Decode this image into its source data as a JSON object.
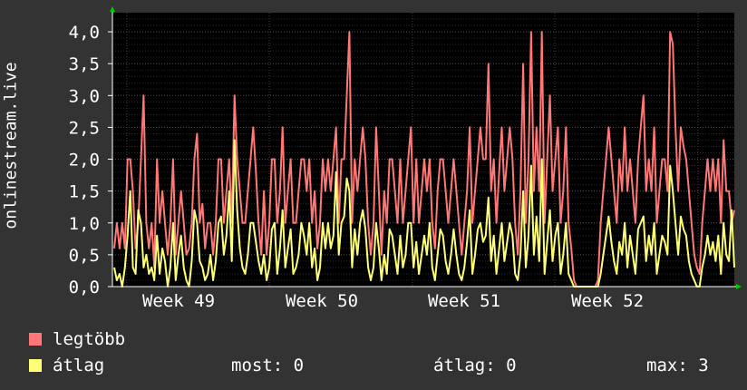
{
  "chart_data": {
    "type": "line",
    "title": "",
    "ylabel": "onlinestream.live",
    "xlabel": "",
    "x_ticks": [
      "Week 49",
      "Week 50",
      "Week 51",
      "Week 52"
    ],
    "y_ticks": [
      "0,0",
      "0,5",
      "1,0",
      "1,5",
      "2,0",
      "2,5",
      "3,0",
      "3,5",
      "4,0"
    ],
    "ylim": [
      0,
      4.3
    ],
    "grid": true,
    "legend_position": "bottom-left",
    "series": [
      {
        "name": "legtöbb",
        "color": "#ff7777",
        "values": [
          0.6,
          1,
          0.6,
          1,
          0.6,
          2,
          2,
          1.5,
          0.6,
          1,
          2,
          3,
          1,
          0.6,
          1,
          0.3,
          2,
          1,
          1.5,
          1,
          0.5,
          1,
          2,
          0.5,
          1,
          1.5,
          1,
          0.5,
          0.6,
          1,
          2,
          2.4,
          1,
          1.3,
          0.6,
          1,
          1,
          0.5,
          1,
          2,
          2,
          1,
          1.5,
          2,
          1,
          3,
          2,
          1.5,
          1,
          1,
          1.5,
          2,
          2.5,
          1.8,
          1,
          0.5,
          1.5,
          0.5,
          1,
          2,
          2,
          1,
          1.5,
          2.5,
          1,
          1.5,
          2,
          1,
          1,
          1.5,
          2,
          2,
          1.5,
          2,
          1,
          1.5,
          0.6,
          1,
          2,
          1.5,
          2,
          1.5,
          2,
          2.5,
          1,
          2,
          2,
          3,
          4,
          1,
          2,
          1.5,
          2,
          2.5,
          2,
          1,
          0.5,
          1,
          2.5,
          1.5,
          0.5,
          1.5,
          1,
          2,
          2,
          1.5,
          1,
          2,
          1,
          1.5,
          2,
          2.5,
          1,
          2,
          1,
          1.5,
          2,
          1.5,
          2,
          1,
          0.6,
          1.5,
          2,
          2,
          1.5,
          1,
          1.5,
          2,
          1.5,
          1,
          0.5,
          1,
          1.5,
          2.5,
          1,
          1.5,
          2,
          2.5,
          2,
          2,
          3.5,
          1.5,
          2,
          1,
          1.8,
          2.5,
          1.5,
          2,
          2.5,
          2,
          1,
          0.5,
          1.5,
          3.5,
          1,
          2,
          4,
          1.5,
          2.5,
          1.5,
          4,
          1,
          2,
          3,
          1.5,
          2,
          2.5,
          1,
          1.5,
          2.5,
          1,
          0.6,
          0.1,
          0,
          0,
          0,
          0,
          0,
          0,
          0,
          0,
          0.1,
          1,
          1.5,
          2,
          2.5,
          2,
          1.5,
          1,
          2,
          1.5,
          2.5,
          1.5,
          2,
          1.5,
          1,
          2,
          2.5,
          3,
          1.5,
          2,
          1.5,
          2.5,
          1,
          1.5,
          2,
          2,
          1.5,
          4,
          3.8,
          2.5,
          1.5,
          2.5,
          2.2,
          2,
          1.5,
          1,
          0.5,
          0.3,
          0.2,
          1,
          1.5,
          2,
          1.5,
          2,
          1.5,
          2,
          1,
          2.3,
          1.5,
          1.5,
          1,
          1.2
        ]
      },
      {
        "name": "átlag",
        "color": "#ffff77",
        "values": [
          0.3,
          0.1,
          0.2,
          0,
          0.3,
          0.8,
          1.5,
          0.3,
          0.2,
          1.2,
          1,
          0.3,
          0.5,
          0.2,
          0.3,
          0.1,
          0.8,
          0.2,
          0.6,
          0.4,
          0,
          0.3,
          1,
          0.1,
          0.5,
          0.8,
          0.3,
          0.1,
          0,
          0.4,
          1.2,
          1,
          0.4,
          0.3,
          0.1,
          0.2,
          0.5,
          0.1,
          0.4,
          1,
          1.1,
          0.5,
          0.8,
          1.5,
          0.4,
          2.3,
          1.2,
          0.6,
          0.3,
          0.2,
          0.5,
          1,
          1,
          0.7,
          0.4,
          0.2,
          0.5,
          0.1,
          0.3,
          0.9,
          1,
          0.2,
          0.6,
          1.2,
          0.3,
          0.6,
          0.9,
          0.2,
          0.3,
          0.5,
          1,
          0.8,
          0.5,
          1,
          0.3,
          0.6,
          0.1,
          0.3,
          1,
          0.6,
          1,
          0.6,
          0.8,
          1.8,
          0.5,
          1,
          1.1,
          1.7,
          1.5,
          0.3,
          0.9,
          0.5,
          1,
          1.2,
          0.9,
          0.3,
          0.1,
          0.3,
          1,
          0.6,
          0.1,
          0.5,
          0.2,
          0.9,
          0.8,
          0.5,
          0.2,
          0.8,
          0.3,
          0.5,
          1,
          1,
          0.3,
          0.7,
          0.2,
          0.5,
          0.8,
          0.5,
          1,
          0.3,
          0.1,
          0.5,
          0.9,
          0.8,
          0.4,
          0.2,
          0.5,
          0.9,
          0.5,
          0.2,
          0.1,
          0.3,
          0.7,
          1.2,
          0.2,
          0.5,
          0.9,
          1,
          0.7,
          0.8,
          1.4,
          0.4,
          0.8,
          0.2,
          0.6,
          1,
          0.4,
          0.7,
          1,
          0.8,
          0.2,
          0.1,
          0.5,
          1.5,
          0.3,
          0.8,
          1.9,
          0.5,
          1.1,
          0.4,
          2,
          0.2,
          0.7,
          1.2,
          0.4,
          0.8,
          1,
          0.2,
          0.5,
          1,
          0.2,
          0.1,
          0,
          0,
          0,
          0,
          0,
          0,
          0,
          0,
          0,
          0,
          0.2,
          0.5,
          0.8,
          1.1,
          0.7,
          0.4,
          0.2,
          0.7,
          0.5,
          1,
          0.3,
          0.8,
          0.5,
          0.2,
          0.9,
          1,
          1.1,
          0.4,
          0.8,
          0.5,
          1,
          0.2,
          0.5,
          0.8,
          0.7,
          0.5,
          1.9,
          1.5,
          1,
          0.5,
          1.1,
          0.9,
          0.8,
          0.4,
          0.2,
          0.1,
          0,
          0,
          0.3,
          0.5,
          0.8,
          0.5,
          0.7,
          0.4,
          0.8,
          0.2,
          1,
          0.5,
          0.4,
          1.2,
          0.3
        ]
      }
    ]
  },
  "stats": {
    "most": "most: 0",
    "atlag": "átlag: 0",
    "max": "max: 3"
  }
}
